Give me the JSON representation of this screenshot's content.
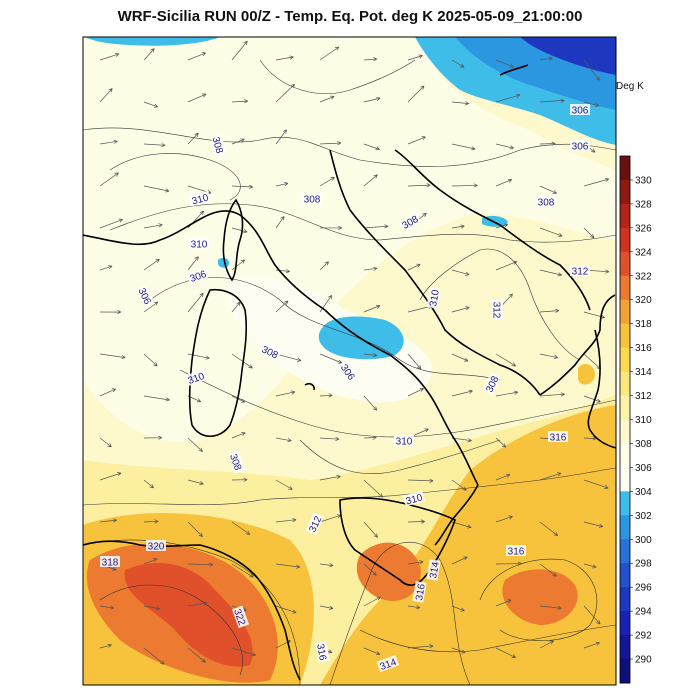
{
  "title": "WRF-Sicilia RUN 00/Z - Temp. Eq. Pot. deg K 2025-05-09_21:00:00",
  "colorbar": {
    "units": "Deg K",
    "ticks": [
      "330",
      "328",
      "326",
      "324",
      "322",
      "320",
      "318",
      "316",
      "314",
      "312",
      "310",
      "308",
      "306",
      "304",
      "302",
      "300",
      "298",
      "296",
      "294",
      "292",
      "290"
    ],
    "colors": [
      "#6b1010",
      "#8e1a12",
      "#b3231a",
      "#cf3320",
      "#e0502a",
      "#ec7a30",
      "#f4a236",
      "#f8c33c",
      "#fbda52",
      "#fbe87a",
      "#fcf3a6",
      "#fdf9cd",
      "#fefde9",
      "#fefdf2",
      "#3fbde9",
      "#2b97e0",
      "#2670d8",
      "#2152cc",
      "#1d37bf",
      "#1a22b3",
      "#151597",
      "#0f0f7a"
    ]
  },
  "contour_labels": [
    "308",
    "306",
    "308",
    "310",
    "306",
    "308",
    "308",
    "310",
    "312",
    "308",
    "306",
    "310",
    "308",
    "310",
    "316",
    "310",
    "312",
    "314",
    "318",
    "320",
    "322",
    "316",
    "316",
    "314",
    "316",
    "312",
    "306",
    "308",
    "310",
    "306"
  ],
  "map": {
    "colors": {
      "background": "#fdf9cd",
      "mid": "#fcf0a0",
      "warm": "#f8c33c",
      "hot": "#ec7a30",
      "hotter": "#e0502a",
      "cool": "#fefdf2",
      "cold": "#3fbde9",
      "colder": "#2b97e0",
      "coldest": "#1d37bf",
      "contour": "#333333",
      "coast": "#000000"
    }
  }
}
